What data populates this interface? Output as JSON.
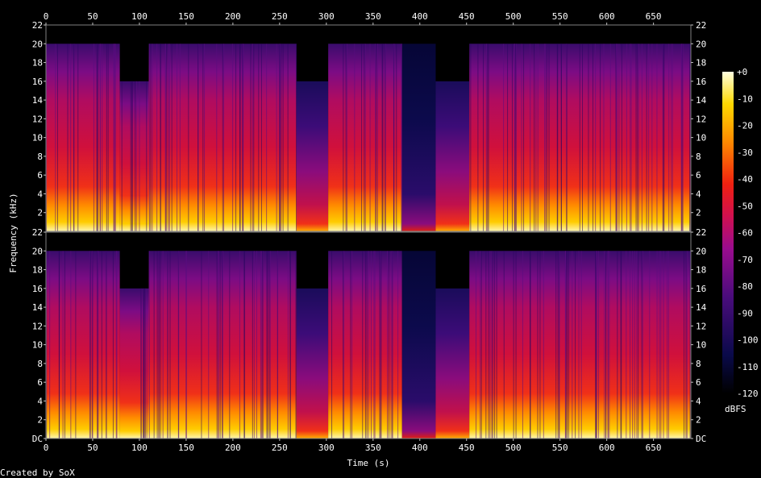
{
  "chart_data": {
    "type": "heatmap",
    "title": "",
    "xlabel": "Time (s)",
    "ylabel": "Frequency (kHz)",
    "xlim": [
      0,
      690
    ],
    "ylim": [
      0,
      22
    ],
    "x_ticks_top": [
      "0",
      "50",
      "100",
      "150",
      "200",
      "250",
      "300",
      "350",
      "400",
      "450",
      "500",
      "550",
      "600",
      "650"
    ],
    "x_ticks_bottom": [
      "0",
      "50",
      "100",
      "150",
      "200",
      "250",
      "300",
      "350",
      "400",
      "450",
      "500",
      "550",
      "600",
      "650"
    ],
    "x_tick_values": [
      0,
      50,
      100,
      150,
      200,
      250,
      300,
      350,
      400,
      450,
      500,
      550,
      600,
      650
    ],
    "channels": [
      {
        "y_tick_labels": [
          "22",
          "20",
          "18",
          "16",
          "14",
          "12",
          "10",
          "8",
          "6",
          "4",
          "2"
        ],
        "y_tick_values": [
          22,
          20,
          18,
          16,
          14,
          12,
          10,
          8,
          6,
          4,
          2
        ]
      },
      {
        "y_tick_labels": [
          "22",
          "20",
          "18",
          "16",
          "14",
          "12",
          "10",
          "8",
          "6",
          "4",
          "2",
          "DC"
        ],
        "y_tick_values": [
          22,
          20,
          18,
          16,
          14,
          12,
          10,
          8,
          6,
          4,
          2,
          0
        ]
      }
    ],
    "colorbar": {
      "label": "dBFS",
      "tick_labels": [
        "+0",
        "-10",
        "-20",
        "-30",
        "-40",
        "-50",
        "-60",
        "-70",
        "-80",
        "-90",
        "-100",
        "-110",
        "-120"
      ],
      "tick_values": [
        0,
        -10,
        -20,
        -30,
        -40,
        -50,
        -60,
        -70,
        -80,
        -90,
        -100,
        -110,
        -120
      ],
      "range": [
        -120,
        0
      ]
    },
    "segments": [
      {
        "start": 0,
        "end": 79,
        "cutoff_khz": 20,
        "level": "loud"
      },
      {
        "start": 79,
        "end": 110,
        "cutoff_khz": 16,
        "level": "loud"
      },
      {
        "start": 110,
        "end": 268,
        "cutoff_khz": 20,
        "level": "loud"
      },
      {
        "start": 268,
        "end": 302,
        "cutoff_khz": 16,
        "level": "quiet"
      },
      {
        "start": 302,
        "end": 381,
        "cutoff_khz": 20,
        "level": "loud"
      },
      {
        "start": 381,
        "end": 417,
        "cutoff_khz": 20,
        "level": "very-quiet"
      },
      {
        "start": 417,
        "end": 453,
        "cutoff_khz": 16,
        "level": "quiet"
      },
      {
        "start": 453,
        "end": 690,
        "cutoff_khz": 20,
        "level": "loud"
      }
    ]
  },
  "footer": {
    "credit": "Created by SoX"
  }
}
